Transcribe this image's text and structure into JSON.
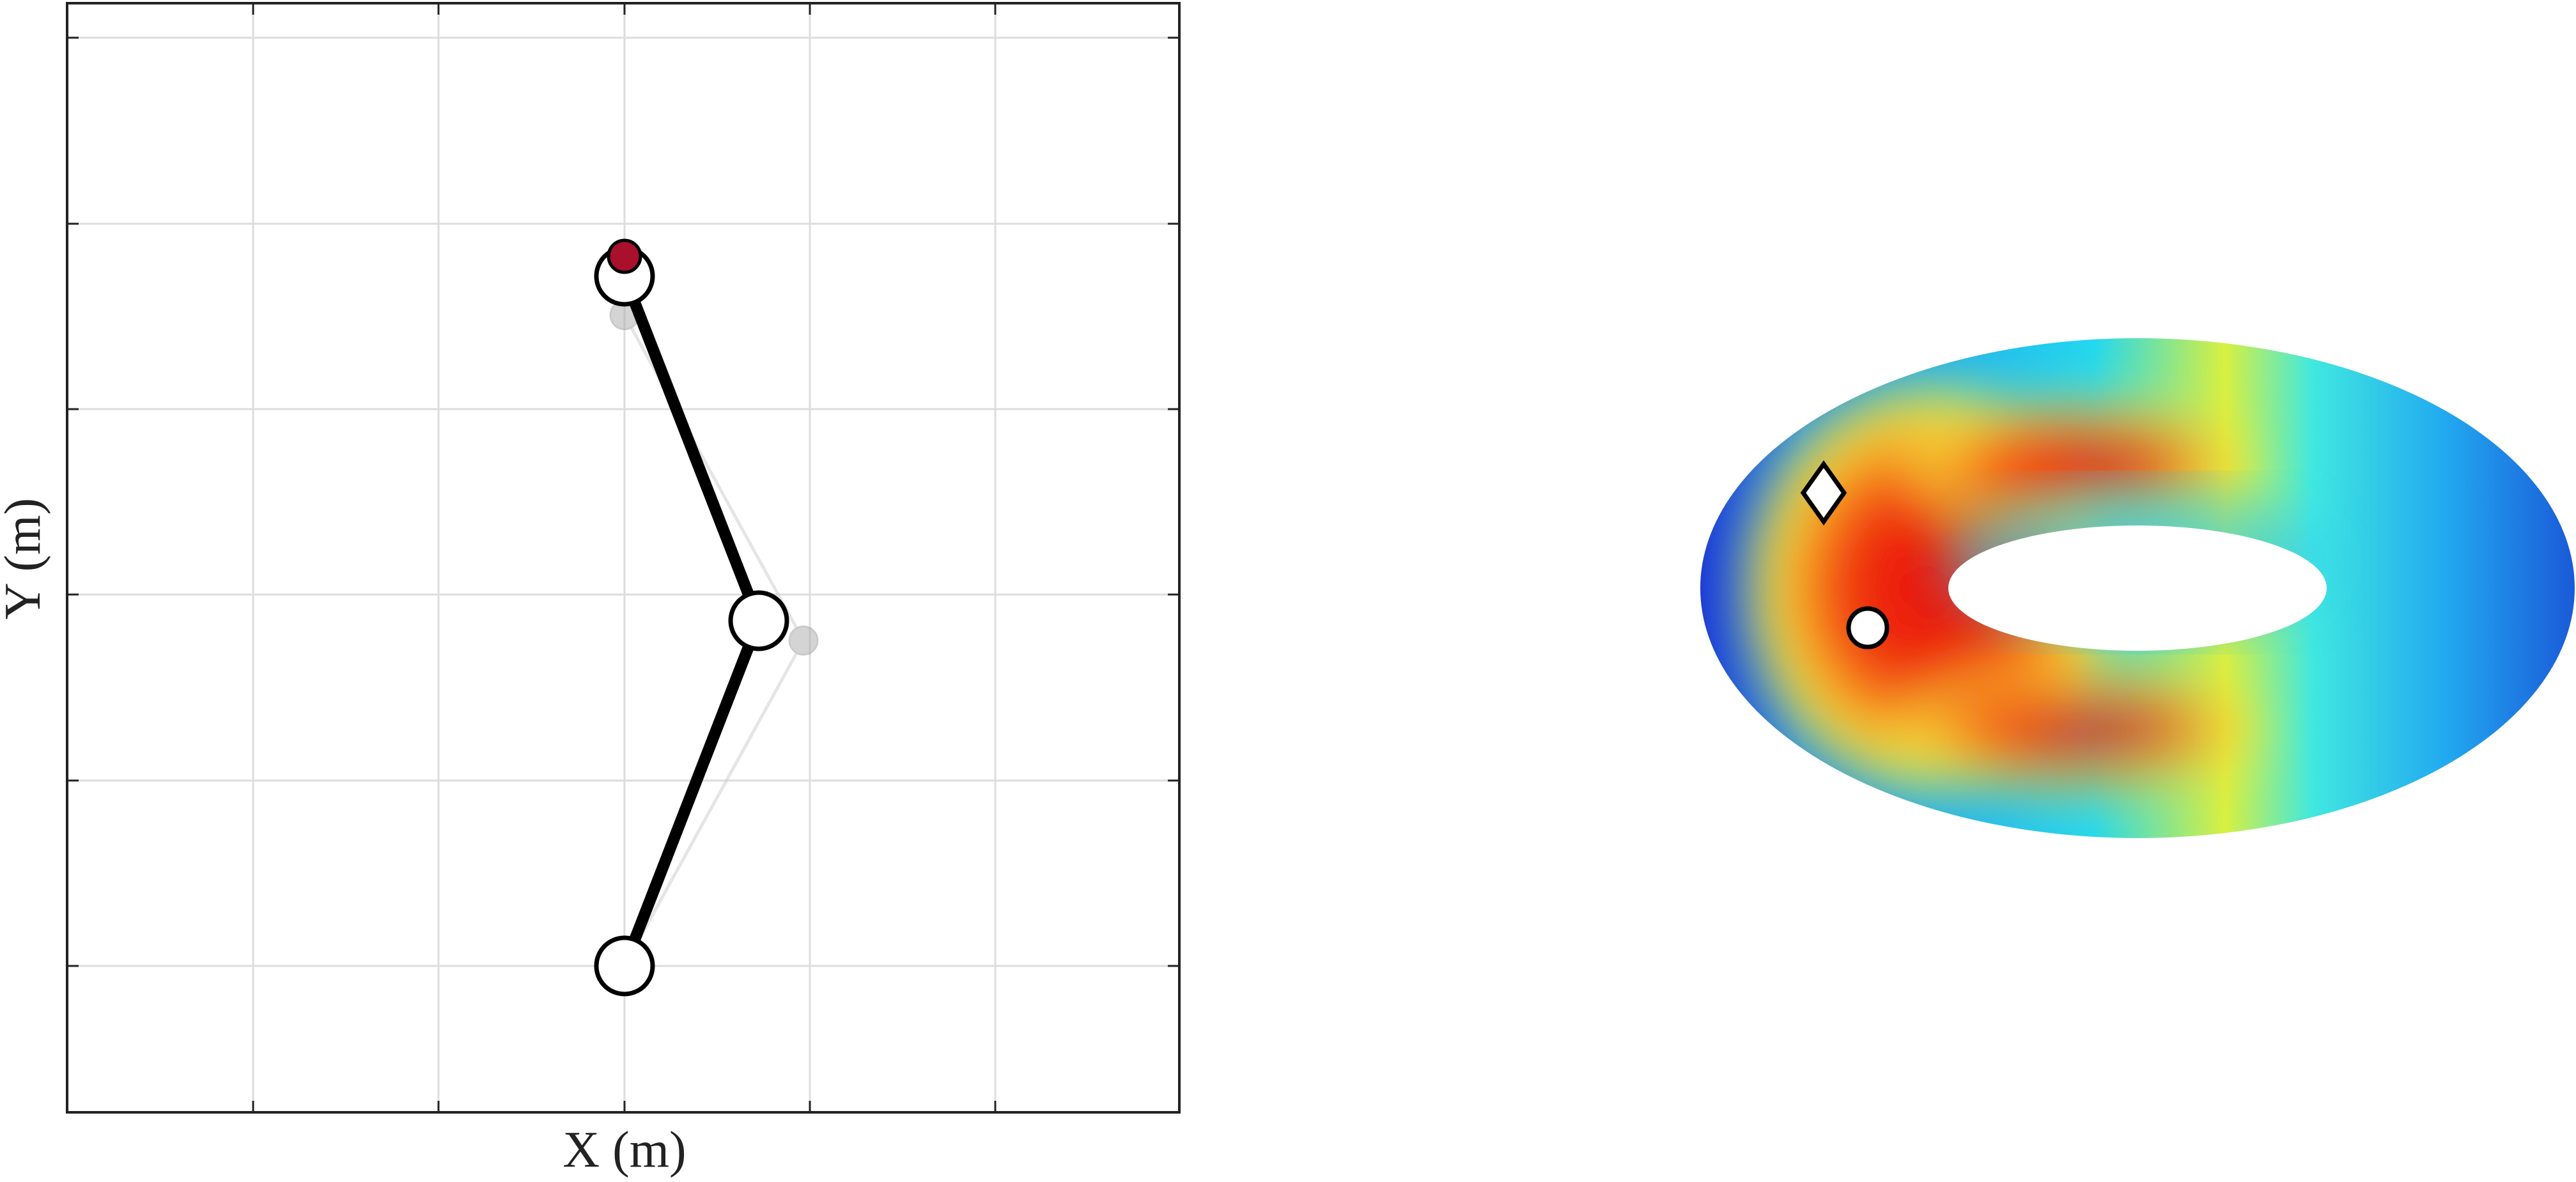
{
  "plot": {
    "x_label": "X (m)",
    "y_label": "Y (m)"
  }
}
